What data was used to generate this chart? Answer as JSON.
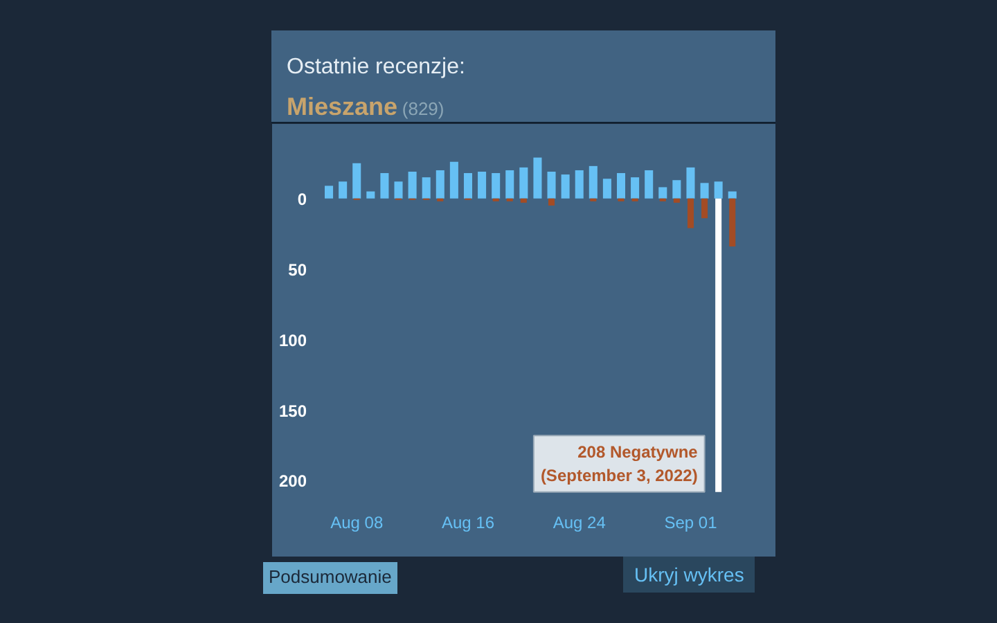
{
  "chart_data": {
    "type": "bar",
    "title": "Ostatnie recenzje:",
    "subtitle": "Mieszane",
    "x": [
      "2022-08-06",
      "2022-08-07",
      "2022-08-08",
      "2022-08-09",
      "2022-08-10",
      "2022-08-11",
      "2022-08-12",
      "2022-08-13",
      "2022-08-14",
      "2022-08-15",
      "2022-08-16",
      "2022-08-17",
      "2022-08-18",
      "2022-08-19",
      "2022-08-20",
      "2022-08-21",
      "2022-08-22",
      "2022-08-23",
      "2022-08-24",
      "2022-08-25",
      "2022-08-26",
      "2022-08-27",
      "2022-08-28",
      "2022-08-29",
      "2022-08-30",
      "2022-08-31",
      "2022-09-01",
      "2022-09-02",
      "2022-09-03",
      "2022-09-04"
    ],
    "series": [
      {
        "color": "#66c0f4",
        "values": [
          9,
          12,
          25,
          5,
          18,
          12,
          19,
          15,
          20,
          26,
          18,
          19,
          18,
          20,
          22,
          29,
          19,
          17,
          20,
          23,
          14,
          18,
          15,
          20,
          8,
          13,
          22,
          11,
          12,
          5
        ]
      },
      {
        "colors": [
          "#a34c25",
          "#a34c25",
          "#a34c25",
          "#a34c25",
          "#a34c25",
          "#a34c25",
          "#a34c25",
          "#a34c25",
          "#a34c25",
          "#a34c25",
          "#a34c25",
          "#a34c25",
          "#a34c25",
          "#a34c25",
          "#a34c25",
          "#a34c25",
          "#a34c25",
          "#a34c25",
          "#a34c25",
          "#a34c25",
          "#a34c25",
          "#a34c25",
          "#a34c25",
          "#a34c25",
          "#a34c25",
          "#a34c25",
          "#a34c25",
          "#a34c25",
          "#ffffff",
          "#a34c25"
        ],
        "values": [
          0,
          0,
          -1,
          0,
          0,
          -1,
          -1,
          -1,
          -2,
          0,
          -1,
          0,
          -2,
          -2,
          -3,
          0,
          -5,
          0,
          0,
          -2,
          0,
          -2,
          -2,
          0,
          -2,
          -3,
          -21,
          -14,
          -208,
          -34
        ]
      }
    ],
    "xlim": [
      "2022-08-05T12:00",
      "2022-09-06T18:00"
    ],
    "ylim": [
      -215,
      45
    ],
    "xticks": [
      {
        "value": "2022-08-08",
        "label": "Aug 08"
      },
      {
        "value": "2022-08-16",
        "label": "Aug 16"
      },
      {
        "value": "2022-08-24",
        "label": "Aug 24"
      },
      {
        "value": "2022-09-01",
        "label": "Sep 01"
      }
    ],
    "yticks": [
      0,
      {
        "value": -50,
        "label": "50"
      },
      {
        "value": -100,
        "label": "100"
      },
      {
        "value": -150,
        "label": "150"
      },
      {
        "value": -200,
        "label": "200"
      }
    ],
    "annotations": [
      "(829)",
      "Podsumowanie",
      "Ukryj wykres",
      {
        "text": "208 Negatywne\n(September 3, 2022)",
        "x": "2022-09-03",
        "y": -208
      }
    ]
  }
}
